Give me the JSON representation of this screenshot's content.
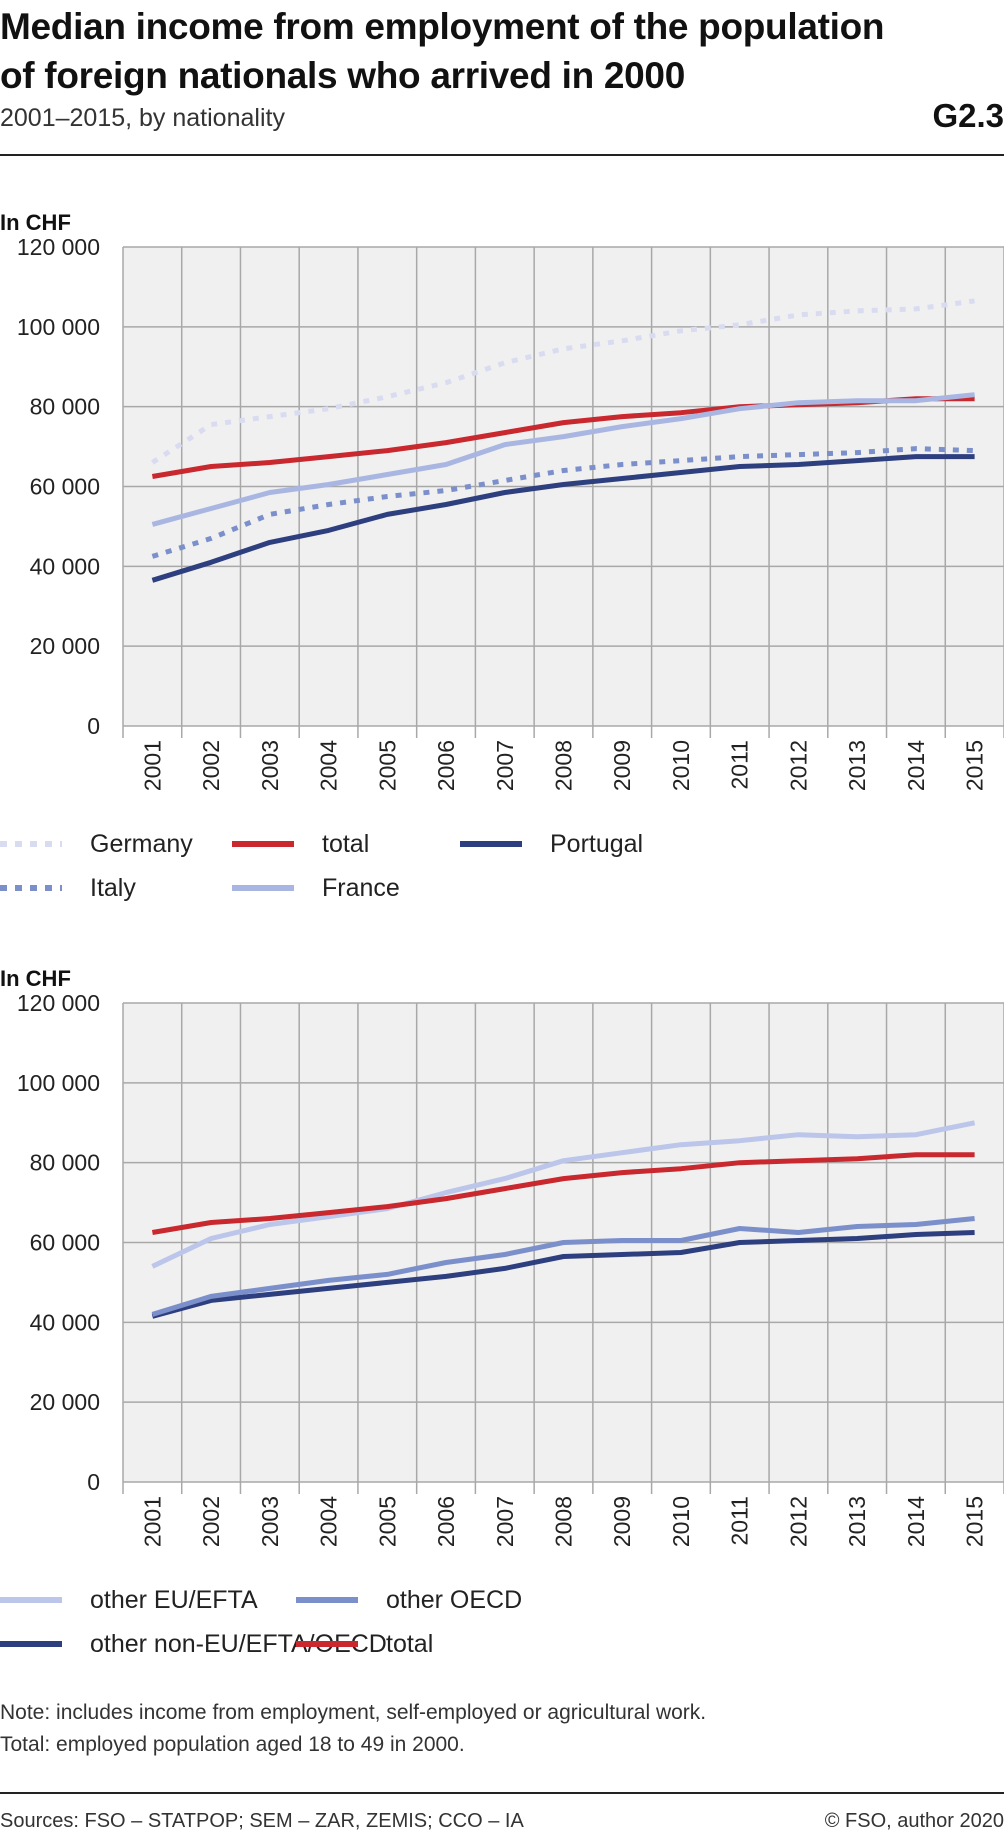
{
  "header": {
    "title_line1": "Median income from employment of the population",
    "title_line2": "of foreign nationals who arrived in 2000",
    "subtitle": "2001–2015, by nationality",
    "code": "G2.3"
  },
  "chart_data": [
    {
      "type": "line",
      "ylabel": "In CHF",
      "ylim": [
        0,
        120000
      ],
      "yticks": [
        0,
        20000,
        40000,
        60000,
        80000,
        100000,
        120000
      ],
      "ytick_labels": [
        "0",
        "20 000",
        "40 000",
        "60 000",
        "80 000",
        "100 000",
        "120 000"
      ],
      "x": [
        "2001",
        "2002",
        "2003",
        "2004",
        "2005",
        "2006",
        "2007",
        "2008",
        "2009",
        "2010",
        "2011",
        "2012",
        "2013",
        "2014",
        "2015"
      ],
      "grid": "horizontal",
      "legend_position": "bottom",
      "series": [
        {
          "name": "Germany",
          "color": "#d9dcf0",
          "dashed": true,
          "values": [
            66000,
            75500,
            77500,
            79500,
            82500,
            86000,
            91000,
            94500,
            96500,
            99000,
            100500,
            103000,
            104000,
            104500,
            106500
          ]
        },
        {
          "name": "Italy",
          "color": "#7b8fcb",
          "dashed": true,
          "values": [
            42500,
            47000,
            53000,
            55500,
            57500,
            59000,
            61500,
            64000,
            65500,
            66500,
            67500,
            68000,
            68500,
            69500,
            69000
          ]
        },
        {
          "name": "total",
          "color": "#c8282e",
          "dashed": false,
          "values": [
            62500,
            65000,
            66000,
            67500,
            69000,
            71000,
            73500,
            76000,
            77500,
            78500,
            80000,
            80500,
            81000,
            82000,
            82000
          ]
        },
        {
          "name": "France",
          "color": "#a9b6e2",
          "dashed": false,
          "values": [
            50500,
            54500,
            58500,
            60500,
            63000,
            65500,
            70500,
            72500,
            75000,
            77000,
            79500,
            81000,
            81500,
            81500,
            83000
          ]
        },
        {
          "name": "Portugal",
          "color": "#2e3f7f",
          "dashed": false,
          "values": [
            36500,
            41000,
            46000,
            49000,
            53000,
            55500,
            58500,
            60500,
            62000,
            63500,
            65000,
            65500,
            66500,
            67500,
            67500
          ]
        }
      ]
    },
    {
      "type": "line",
      "ylabel": "In CHF",
      "ylim": [
        0,
        120000
      ],
      "yticks": [
        0,
        20000,
        40000,
        60000,
        80000,
        100000,
        120000
      ],
      "ytick_labels": [
        "0",
        "20 000",
        "40 000",
        "60 000",
        "80 000",
        "100 000",
        "120 000"
      ],
      "x": [
        "2001",
        "2002",
        "2003",
        "2004",
        "2005",
        "2006",
        "2007",
        "2008",
        "2009",
        "2010",
        "2011",
        "2012",
        "2013",
        "2014",
        "2015"
      ],
      "grid": "horizontal",
      "legend_position": "bottom",
      "series": [
        {
          "name": "other EU/EFTA",
          "color": "#bcc5ea",
          "dashed": false,
          "values": [
            54000,
            61000,
            64500,
            66500,
            68500,
            72500,
            76000,
            80500,
            82500,
            84500,
            85500,
            87000,
            86500,
            87000,
            90000
          ]
        },
        {
          "name": "other non-EU/EFTA/OECD",
          "color": "#2e3f7f",
          "dashed": false,
          "values": [
            41500,
            45500,
            47000,
            48500,
            50000,
            51500,
            53500,
            56500,
            57000,
            57500,
            60000,
            60500,
            61000,
            62000,
            62500
          ]
        },
        {
          "name": "other OECD",
          "color": "#7b8fcb",
          "dashed": false,
          "values": [
            42000,
            46500,
            48500,
            50500,
            52000,
            55000,
            57000,
            60000,
            60500,
            60500,
            63500,
            62500,
            64000,
            64500,
            66000
          ]
        },
        {
          "name": "total",
          "color": "#c8282e",
          "dashed": false,
          "values": [
            62500,
            65000,
            66000,
            67500,
            69000,
            71000,
            73500,
            76000,
            77500,
            78500,
            80000,
            80500,
            81000,
            82000,
            82000
          ]
        }
      ]
    }
  ],
  "footer": {
    "note_line1": "Note: includes income from employment, self-employed or agricultural work.",
    "note_line2": "Total: employed population aged 18 to 49 in 2000.",
    "sources": "Sources: FSO – STATPOP; SEM – ZAR, ZEMIS; CCO – IA",
    "copyright": "© FSO, author 2020"
  }
}
